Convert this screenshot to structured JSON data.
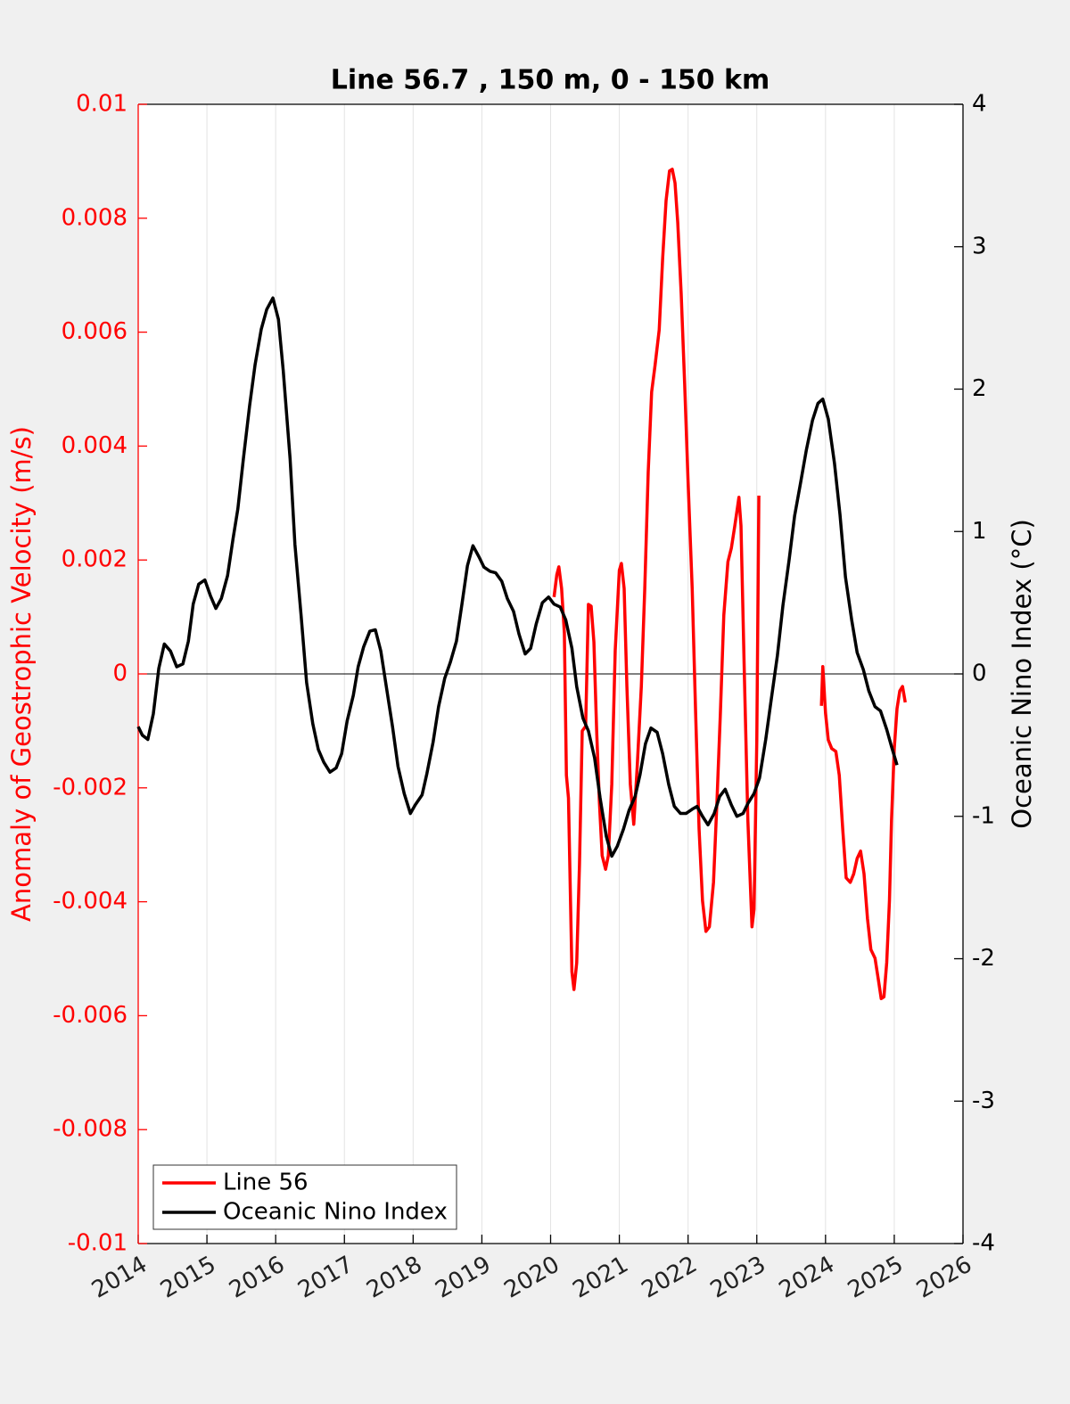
{
  "chart_data": {
    "type": "line",
    "title": "Line 56.7 , 150 m, 0 - 150 km",
    "ylabel": "Anomaly of Geostrophic Velocity (m/s)",
    "y2label": "Oceanic Nino Index (°C)",
    "xlim": [
      2014,
      2026
    ],
    "xticks": [
      2014,
      2015,
      2016,
      2017,
      2018,
      2019,
      2020,
      2021,
      2022,
      2023,
      2024,
      2025,
      2026
    ],
    "ylim": [
      -0.01,
      0.01
    ],
    "yticks": [
      -0.01,
      -0.008,
      -0.006,
      -0.004,
      -0.002,
      0,
      0.002,
      0.004,
      0.006,
      0.008,
      0.01
    ],
    "y2lim": [
      -4,
      4
    ],
    "y2ticks": [
      -4,
      -3,
      -2,
      -1,
      0,
      1,
      2,
      3,
      4
    ],
    "grid": true,
    "legend": "lower left",
    "series": [
      {
        "name": "Line 56",
        "color": "#ff0000",
        "axis": "y",
        "x": [
          2020.05,
          2020.09,
          2020.12,
          2020.16,
          2020.2,
          2020.23,
          2020.26,
          2020.31,
          2020.34,
          2020.38,
          2020.42,
          2020.46,
          2020.51,
          2020.55,
          2020.59,
          2020.63,
          2020.67,
          2020.71,
          2020.75,
          2020.8,
          2020.84,
          2020.89,
          2020.94,
          2021.0,
          2021.03,
          2021.07,
          2021.11,
          2021.16,
          2021.21,
          2021.26,
          2021.32,
          2021.37,
          2021.42,
          2021.47,
          2021.52,
          2021.58,
          2021.63,
          2021.68,
          2021.73,
          2021.77,
          2021.81,
          2021.85,
          2021.9,
          2021.95,
          2022.0,
          2022.06,
          2022.11,
          2022.16,
          2022.21,
          2022.26,
          2022.31,
          2022.37,
          2022.42,
          2022.47,
          2022.52,
          2022.58,
          2022.63,
          2022.68,
          2022.74,
          2022.77,
          2022.82,
          2022.87,
          2022.93,
          2022.96,
          2023.0,
          2023.03,
          2023.5,
          2023.94,
          2023.96,
          2024.0,
          2024.04,
          2024.09,
          2024.15,
          2024.2,
          2024.25,
          2024.3,
          2024.36,
          2024.41,
          2024.46,
          2024.51,
          2024.56,
          2024.61,
          2024.66,
          2024.72,
          2024.77,
          2024.81,
          2024.85,
          2024.89,
          2024.93,
          2024.96,
          2025.0,
          2025.04,
          2025.08,
          2025.12,
          2025.16
        ],
        "values": [
          0.00135,
          0.00174,
          0.00188,
          0.0015,
          0.00072,
          -0.00178,
          -0.00218,
          -0.00523,
          -0.00554,
          -0.00507,
          -0.00335,
          -0.001,
          -0.00092,
          0.00122,
          0.00119,
          0.00056,
          -0.001,
          -0.00225,
          -0.00319,
          -0.00343,
          -0.00319,
          -0.00194,
          0.00041,
          0.00182,
          0.00194,
          0.0015,
          -0.00022,
          -0.00194,
          -0.00264,
          -0.00163,
          -0.00022,
          0.0015,
          0.00354,
          0.00495,
          0.00542,
          0.00604,
          0.00729,
          0.00831,
          0.00883,
          0.00886,
          0.00862,
          0.00792,
          0.00667,
          0.0051,
          0.00338,
          0.0015,
          -0.00069,
          -0.00272,
          -0.00398,
          -0.00452,
          -0.00444,
          -0.00366,
          -0.00225,
          -0.00069,
          0.00103,
          0.00197,
          0.00221,
          0.0026,
          0.0031,
          0.0026,
          -6e-05,
          -0.00257,
          -0.00444,
          -0.00413,
          -0.00116,
          0.00313,
          null,
          -0.00056,
          0.00013,
          -0.00069,
          -0.00116,
          -0.00131,
          -0.00136,
          -0.00178,
          -0.00272,
          -0.00358,
          -0.00366,
          -0.00351,
          -0.00324,
          -0.00311,
          -0.00351,
          -0.00429,
          -0.00484,
          -0.00499,
          -0.00538,
          -0.0057,
          -0.00567,
          -0.00507,
          -0.00398,
          -0.00257,
          -0.00131,
          -0.00061,
          -0.0003,
          -0.00022,
          -0.0005
        ]
      },
      {
        "name": "Oceanic Nino Index",
        "color": "#000000",
        "axis": "y2",
        "x": [
          2014.0,
          2014.06,
          2014.14,
          2014.22,
          2014.3,
          2014.38,
          2014.47,
          2014.56,
          2014.65,
          2014.73,
          2014.8,
          2014.88,
          2014.97,
          2015.05,
          2015.13,
          2015.21,
          2015.3,
          2015.38,
          2015.45,
          2015.53,
          2015.62,
          2015.7,
          2015.79,
          2015.87,
          2015.96,
          2016.04,
          2016.11,
          2016.21,
          2016.28,
          2016.37,
          2016.45,
          2016.54,
          2016.62,
          2016.7,
          2016.79,
          2016.88,
          2016.96,
          2017.04,
          2017.13,
          2017.2,
          2017.28,
          2017.37,
          2017.45,
          2017.53,
          2017.61,
          2017.7,
          2017.78,
          2017.87,
          2017.96,
          2018.03,
          2018.13,
          2018.2,
          2018.29,
          2018.37,
          2018.46,
          2018.54,
          2018.63,
          2018.71,
          2018.79,
          2018.87,
          2018.96,
          2019.03,
          2019.12,
          2019.2,
          2019.29,
          2019.37,
          2019.46,
          2019.54,
          2019.63,
          2019.71,
          2019.79,
          2019.88,
          2019.97,
          2020.05,
          2020.14,
          2020.22,
          2020.31,
          2020.38,
          2020.47,
          2020.55,
          2020.64,
          2020.72,
          2020.81,
          2020.89,
          2020.97,
          2021.06,
          2021.14,
          2021.23,
          2021.3,
          2021.38,
          2021.46,
          2021.55,
          2021.63,
          2021.72,
          2021.8,
          2021.89,
          2021.97,
          2022.06,
          2022.13,
          2022.21,
          2022.29,
          2022.38,
          2022.46,
          2022.54,
          2022.63,
          2022.71,
          2022.8,
          2022.87,
          2022.96,
          2023.04,
          2023.13,
          2023.21,
          2023.3,
          2023.38,
          2023.47,
          2023.55,
          2023.64,
          2023.72,
          2023.81,
          2023.89,
          2023.96,
          2024.04,
          2024.13,
          2024.21,
          2024.29,
          2024.38,
          2024.46,
          2024.55,
          2024.63,
          2024.72,
          2024.8,
          2024.89,
          2024.96,
          2025.04
        ],
        "values": [
          -0.37,
          -0.43,
          -0.46,
          -0.28,
          0.04,
          0.21,
          0.16,
          0.05,
          0.07,
          0.23,
          0.49,
          0.63,
          0.66,
          0.55,
          0.46,
          0.53,
          0.69,
          0.95,
          1.16,
          1.51,
          1.88,
          2.17,
          2.42,
          2.56,
          2.64,
          2.49,
          2.13,
          1.51,
          0.91,
          0.41,
          -0.06,
          -0.35,
          -0.53,
          -0.62,
          -0.69,
          -0.66,
          -0.56,
          -0.33,
          -0.15,
          0.05,
          0.19,
          0.3,
          0.31,
          0.16,
          -0.09,
          -0.37,
          -0.65,
          -0.84,
          -0.98,
          -0.92,
          -0.85,
          -0.7,
          -0.48,
          -0.23,
          -0.03,
          0.08,
          0.23,
          0.49,
          0.76,
          0.9,
          0.82,
          0.75,
          0.72,
          0.71,
          0.65,
          0.53,
          0.44,
          0.28,
          0.14,
          0.18,
          0.35,
          0.5,
          0.54,
          0.49,
          0.47,
          0.38,
          0.18,
          -0.09,
          -0.31,
          -0.4,
          -0.59,
          -0.87,
          -1.14,
          -1.28,
          -1.21,
          -1.09,
          -0.96,
          -0.86,
          -0.71,
          -0.49,
          -0.38,
          -0.41,
          -0.56,
          -0.78,
          -0.93,
          -0.98,
          -0.98,
          -0.95,
          -0.93,
          -1.0,
          -1.06,
          -0.98,
          -0.86,
          -0.81,
          -0.92,
          -1.0,
          -0.98,
          -0.91,
          -0.84,
          -0.73,
          -0.46,
          -0.18,
          0.13,
          0.48,
          0.8,
          1.11,
          1.35,
          1.57,
          1.78,
          1.9,
          1.93,
          1.79,
          1.48,
          1.12,
          0.68,
          0.38,
          0.15,
          0.03,
          -0.12,
          -0.23,
          -0.26,
          -0.39,
          -0.51,
          -0.64
        ]
      }
    ]
  }
}
